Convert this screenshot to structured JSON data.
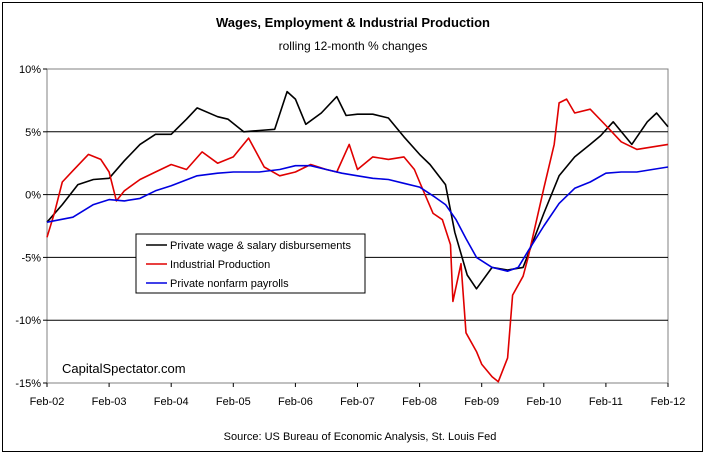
{
  "chart_data": {
    "type": "line",
    "title": "Wages, Employment & Industrial Production",
    "subtitle": "rolling 12-month % changes",
    "source": "Source: US Bureau of Economic Analysis, St. Louis Fed",
    "watermark": "CapitalSpectator.com",
    "ylim": [
      -15,
      10
    ],
    "yticks": [
      10,
      5,
      0,
      -5,
      -10,
      -15
    ],
    "ytick_labels": [
      "10%",
      "5%",
      "0%",
      "-5%",
      "-10%",
      "-15%"
    ],
    "xlim": [
      2002.083,
      2012.083
    ],
    "xticks": [
      2002.083,
      2003.083,
      2004.083,
      2005.083,
      2006.083,
      2007.083,
      2008.083,
      2009.083,
      2010.083,
      2011.083,
      2012.083
    ],
    "xtick_labels": [
      "Feb-02",
      "Feb-03",
      "Feb-04",
      "Feb-05",
      "Feb-06",
      "Feb-07",
      "Feb-08",
      "Feb-09",
      "Feb-10",
      "Feb-11",
      "Feb-12"
    ],
    "grid": "horizontal",
    "legend_position": "middle-left",
    "series": [
      {
        "name": "Private wage & salary disbursements",
        "color": "#000000",
        "x": [
          2002.083,
          2002.33,
          2002.58,
          2002.83,
          2003.083,
          2003.33,
          2003.58,
          2003.83,
          2004.083,
          2004.33,
          2004.5,
          2004.83,
          2005.0,
          2005.25,
          2005.5,
          2005.75,
          2005.95,
          2006.083,
          2006.25,
          2006.5,
          2006.75,
          2006.9,
          2007.083,
          2007.33,
          2007.58,
          2007.83,
          2008.083,
          2008.25,
          2008.5,
          2008.65,
          2008.85,
          2009.0,
          2009.25,
          2009.5,
          2009.75,
          2010.083,
          2010.33,
          2010.58,
          2010.83,
          2011.0,
          2011.2,
          2011.5,
          2011.75,
          2011.9,
          2012.083
        ],
        "y": [
          -2.2,
          -0.8,
          0.8,
          1.2,
          1.3,
          2.7,
          4.0,
          4.8,
          4.8,
          6.0,
          6.9,
          6.2,
          6.0,
          5.0,
          5.1,
          5.2,
          8.2,
          7.6,
          5.6,
          6.5,
          7.8,
          6.3,
          6.4,
          6.4,
          6.1,
          4.6,
          3.2,
          2.4,
          0.8,
          -3.0,
          -6.4,
          -7.5,
          -5.8,
          -6.0,
          -5.8,
          -1.5,
          1.5,
          3.0,
          4.0,
          4.7,
          5.8,
          4.0,
          5.8,
          6.5,
          5.4
        ]
      },
      {
        "name": "Industrial Production",
        "color": "#e00000",
        "x": [
          2002.083,
          2002.2,
          2002.33,
          2002.5,
          2002.75,
          2002.95,
          2003.083,
          2003.2,
          2003.33,
          2003.58,
          2003.83,
          2004.083,
          2004.33,
          2004.58,
          2004.83,
          2005.083,
          2005.33,
          2005.58,
          2005.83,
          2006.083,
          2006.33,
          2006.58,
          2006.75,
          2006.95,
          2007.083,
          2007.33,
          2007.58,
          2007.83,
          2008.0,
          2008.083,
          2008.3,
          2008.45,
          2008.58,
          2008.62,
          2008.75,
          2008.83,
          2009.0,
          2009.083,
          2009.25,
          2009.35,
          2009.5,
          2009.58,
          2009.75,
          2009.83,
          2010.083,
          2010.25,
          2010.33,
          2010.45,
          2010.58,
          2010.83,
          2011.083,
          2011.33,
          2011.58,
          2011.83,
          2012.083
        ],
        "y": [
          -3.4,
          -1.5,
          1.0,
          1.9,
          3.2,
          2.8,
          1.8,
          -0.5,
          0.3,
          1.2,
          1.8,
          2.4,
          2.0,
          3.4,
          2.5,
          3.0,
          4.5,
          2.2,
          1.5,
          1.8,
          2.4,
          2.0,
          1.8,
          4.0,
          2.0,
          3.0,
          2.8,
          3.0,
          2.0,
          1.0,
          -1.5,
          -2.0,
          -4.0,
          -8.5,
          -5.5,
          -11.0,
          -12.5,
          -13.5,
          -14.5,
          -14.9,
          -13.0,
          -8.0,
          -6.5,
          -5.0,
          0.5,
          4.0,
          7.3,
          7.6,
          6.5,
          6.8,
          5.5,
          4.2,
          3.6,
          3.8,
          4.0
        ]
      },
      {
        "name": "Private nonfarm payrolls",
        "color": "#0000e0",
        "x": [
          2002.083,
          2002.5,
          2002.83,
          2003.083,
          2003.33,
          2003.58,
          2003.83,
          2004.083,
          2004.5,
          2004.83,
          2005.083,
          2005.5,
          2005.83,
          2006.083,
          2006.33,
          2006.58,
          2006.83,
          2007.083,
          2007.33,
          2007.58,
          2007.83,
          2008.083,
          2008.33,
          2008.5,
          2008.67,
          2008.83,
          2009.0,
          2009.25,
          2009.5,
          2009.67,
          2009.83,
          2010.083,
          2010.33,
          2010.58,
          2010.83,
          2011.083,
          2011.33,
          2011.58,
          2011.83,
          2012.083
        ],
        "y": [
          -2.2,
          -1.8,
          -0.8,
          -0.4,
          -0.5,
          -0.3,
          0.3,
          0.7,
          1.5,
          1.7,
          1.8,
          1.8,
          2.0,
          2.3,
          2.3,
          2.0,
          1.7,
          1.5,
          1.3,
          1.2,
          0.9,
          0.6,
          -0.2,
          -0.8,
          -2.0,
          -3.5,
          -5.0,
          -5.8,
          -6.1,
          -5.8,
          -4.5,
          -2.5,
          -0.7,
          0.5,
          1.0,
          1.7,
          1.8,
          1.8,
          2.0,
          2.2
        ]
      }
    ]
  }
}
